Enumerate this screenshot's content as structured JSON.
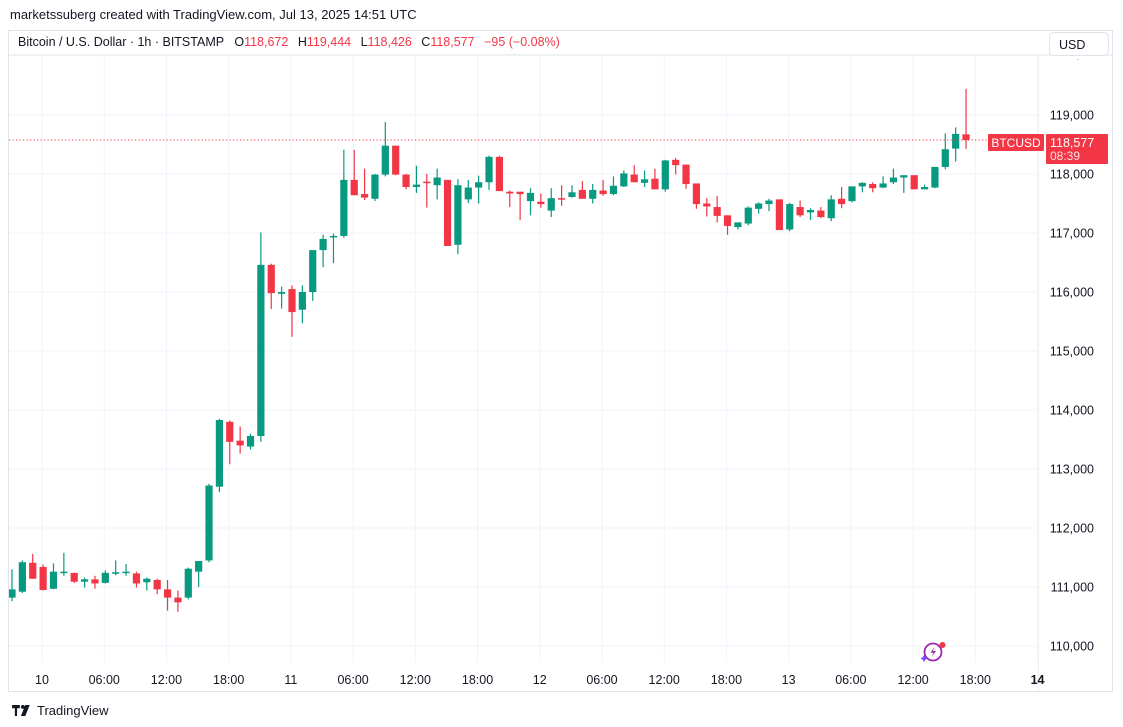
{
  "caption": "marketssuberg created with TradingView.com, Jul 13, 2025 14:51 UTC",
  "legend": {
    "symbol_desc": "Bitcoin / U.S. Dollar · 1h · BITSTAMP",
    "open_label": "O",
    "open": "118,672",
    "high_label": "H",
    "high": "119,444",
    "low_label": "L",
    "low": "118,426",
    "close_label": "C",
    "close": "118,577",
    "change": "−95 (−0.08%)"
  },
  "currency_button": "USD",
  "last_price": {
    "symbol_tag": "BTCUSD",
    "price": "118,577",
    "countdown": "08:39",
    "value": 118577
  },
  "footer_brand": "TradingView",
  "colors": {
    "up": "#089981",
    "down": "#f23645",
    "grid": "#f0f3fa",
    "text": "#131722",
    "accent_purple": "#9c27b0"
  },
  "chart_data": {
    "type": "candlestick",
    "title": "Bitcoin / U.S. Dollar · 1h · BITSTAMP",
    "xlabel": "",
    "ylabel": "USD",
    "ylim": [
      109600,
      120100
    ],
    "y_ticks": [
      110000,
      111000,
      112000,
      113000,
      114000,
      115000,
      116000,
      117000,
      118000,
      119000
    ],
    "y_tick_labels": [
      "110,000",
      "111,000",
      "112,000",
      "113,000",
      "114,000",
      "115,000",
      "116,000",
      "117,000",
      "118,000",
      "119,000"
    ],
    "x_tick_labels": [
      {
        "label": "10",
        "bold": false
      },
      {
        "label": "06:00",
        "bold": false
      },
      {
        "label": "12:00",
        "bold": false
      },
      {
        "label": "18:00",
        "bold": false
      },
      {
        "label": "11",
        "bold": false
      },
      {
        "label": "06:00",
        "bold": false
      },
      {
        "label": "12:00",
        "bold": false
      },
      {
        "label": "18:00",
        "bold": false
      },
      {
        "label": "12",
        "bold": false
      },
      {
        "label": "06:00",
        "bold": false
      },
      {
        "label": "12:00",
        "bold": false
      },
      {
        "label": "18:00",
        "bold": false
      },
      {
        "label": "13",
        "bold": false
      },
      {
        "label": "06:00",
        "bold": false
      },
      {
        "label": "12:00",
        "bold": false
      },
      {
        "label": "18:00",
        "bold": false
      },
      {
        "label": "14",
        "bold": true
      }
    ],
    "grid": true,
    "interval": "1h",
    "candles": [
      [
        110820,
        111300,
        110760,
        110960
      ],
      [
        110920,
        111450,
        110900,
        111420
      ],
      [
        111410,
        111560,
        111140,
        111140
      ],
      [
        111340,
        111380,
        110940,
        110950
      ],
      [
        110970,
        111400,
        110960,
        111260
      ],
      [
        111240,
        111580,
        111190,
        111260
      ],
      [
        111240,
        111240,
        111070,
        111090
      ],
      [
        111090,
        111160,
        110990,
        111130
      ],
      [
        111130,
        111190,
        110970,
        111060
      ],
      [
        111070,
        111280,
        111060,
        111240
      ],
      [
        111250,
        111450,
        111200,
        111250
      ],
      [
        111250,
        111390,
        111190,
        111260
      ],
      [
        111230,
        111260,
        110990,
        111060
      ],
      [
        111080,
        111160,
        110940,
        111140
      ],
      [
        111120,
        111140,
        110880,
        110960
      ],
      [
        110960,
        111120,
        110600,
        110820
      ],
      [
        110820,
        110940,
        110580,
        110740
      ],
      [
        110820,
        111330,
        110790,
        111310
      ],
      [
        111260,
        111420,
        111000,
        111440
      ],
      [
        111450,
        112750,
        111420,
        112720
      ],
      [
        112700,
        113850,
        112610,
        113830
      ],
      [
        113800,
        113820,
        113080,
        113460
      ],
      [
        113480,
        113720,
        113260,
        113400
      ],
      [
        113380,
        113600,
        113330,
        113560
      ],
      [
        113560,
        117010,
        113460,
        116460
      ],
      [
        116460,
        116480,
        115710,
        115980
      ],
      [
        115970,
        116090,
        115720,
        116000
      ],
      [
        116050,
        116110,
        115240,
        115660
      ],
      [
        115700,
        116110,
        115470,
        116000
      ],
      [
        116000,
        116680,
        115850,
        116710
      ],
      [
        116710,
        116970,
        116420,
        116900
      ],
      [
        116930,
        116990,
        116490,
        116950
      ],
      [
        116950,
        118410,
        116920,
        117900
      ],
      [
        117900,
        118410,
        117640,
        117640
      ],
      [
        117660,
        118090,
        117560,
        117600
      ],
      [
        117580,
        118000,
        117540,
        117990
      ],
      [
        117990,
        118880,
        117960,
        118480
      ],
      [
        118480,
        118480,
        117980,
        117990
      ],
      [
        117990,
        118000,
        117740,
        117780
      ],
      [
        117780,
        118140,
        117680,
        117820
      ],
      [
        117870,
        118000,
        117430,
        117850
      ],
      [
        117810,
        118090,
        117570,
        117940
      ],
      [
        117900,
        117900,
        116790,
        116780
      ],
      [
        116800,
        117910,
        116640,
        117810
      ],
      [
        117570,
        117900,
        117510,
        117770
      ],
      [
        117770,
        117970,
        117500,
        117860
      ],
      [
        117860,
        118310,
        117730,
        118290
      ],
      [
        118290,
        118310,
        117790,
        117710
      ],
      [
        117700,
        117720,
        117440,
        117670
      ],
      [
        117700,
        117700,
        117220,
        117660
      ],
      [
        117540,
        117760,
        117300,
        117680
      ],
      [
        117530,
        117670,
        117430,
        117490
      ],
      [
        117380,
        117760,
        117270,
        117590
      ],
      [
        117590,
        117810,
        117460,
        117580
      ],
      [
        117610,
        117810,
        117600,
        117690
      ],
      [
        117730,
        117880,
        117600,
        117580
      ],
      [
        117580,
        117830,
        117500,
        117730
      ],
      [
        117720,
        117900,
        117630,
        117660
      ],
      [
        117660,
        117960,
        117640,
        117800
      ],
      [
        117790,
        118060,
        117780,
        118010
      ],
      [
        117990,
        118150,
        117870,
        117860
      ],
      [
        117850,
        118060,
        117780,
        117910
      ],
      [
        117920,
        118090,
        117760,
        117740
      ],
      [
        117740,
        118240,
        117700,
        118230
      ],
      [
        118240,
        118270,
        117990,
        118150
      ],
      [
        118160,
        118130,
        117750,
        117830
      ],
      [
        117840,
        117830,
        117410,
        117490
      ],
      [
        117500,
        117590,
        117280,
        117450
      ],
      [
        117440,
        117630,
        117180,
        117290
      ],
      [
        117300,
        117300,
        116970,
        117120
      ],
      [
        117100,
        117170,
        117060,
        117180
      ],
      [
        117160,
        117450,
        117130,
        117430
      ],
      [
        117410,
        117520,
        117330,
        117500
      ],
      [
        117490,
        117580,
        117370,
        117550
      ],
      [
        117570,
        117570,
        117050,
        117050
      ],
      [
        117060,
        117510,
        117030,
        117490
      ],
      [
        117440,
        117550,
        117270,
        117300
      ],
      [
        117350,
        117420,
        117220,
        117390
      ],
      [
        117380,
        117440,
        117250,
        117270
      ],
      [
        117250,
        117640,
        117200,
        117570
      ],
      [
        117580,
        117780,
        117420,
        117490
      ],
      [
        117540,
        117790,
        117520,
        117790
      ],
      [
        117790,
        117860,
        117690,
        117850
      ],
      [
        117830,
        117860,
        117690,
        117760
      ],
      [
        117770,
        117960,
        117760,
        117840
      ],
      [
        117860,
        118090,
        117830,
        117940
      ],
      [
        117940,
        117950,
        117680,
        117980
      ],
      [
        117980,
        117970,
        117770,
        117740
      ],
      [
        117740,
        117820,
        117740,
        117780
      ],
      [
        117770,
        118120,
        117760,
        118120
      ],
      [
        118120,
        118690,
        118080,
        118420
      ],
      [
        118430,
        118790,
        118210,
        118680
      ],
      [
        118672,
        119444,
        118426,
        118577
      ]
    ]
  },
  "icons": {
    "logo": "tradingview-logo-icon",
    "ai": "ai-sparkle-icon"
  }
}
